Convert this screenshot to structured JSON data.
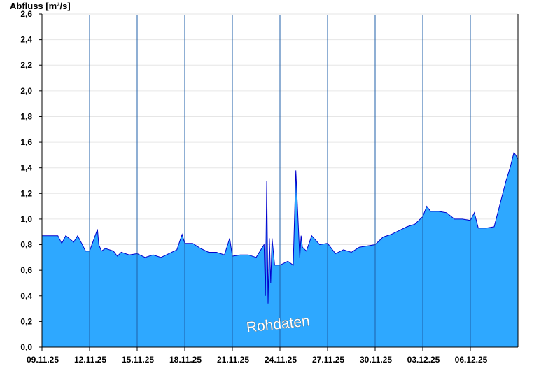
{
  "chart_data": {
    "type": "area",
    "ylabel": "Abfluss [m³/s]",
    "ylim": [
      0,
      2.6
    ],
    "yticks": [
      "0,0",
      "0,2",
      "0,4",
      "0,6",
      "0,8",
      "1,0",
      "1,2",
      "1,4",
      "1,6",
      "1,8",
      "2,0",
      "2,2",
      "2,4",
      "2,6"
    ],
    "xlim": [
      "2025-11-09",
      "2025-12-09"
    ],
    "xticks": [
      {
        "date": "2025-11-09",
        "label": "09.11.25"
      },
      {
        "date": "2025-11-12",
        "label": "12.11.25"
      },
      {
        "date": "2025-11-15",
        "label": "15.11.25"
      },
      {
        "date": "2025-11-18",
        "label": "18.11.25"
      },
      {
        "date": "2025-11-21",
        "label": "21.11.25"
      },
      {
        "date": "2025-11-24",
        "label": "24.11.25"
      },
      {
        "date": "2025-11-27",
        "label": "27.11.25"
      },
      {
        "date": "2025-11-30",
        "label": "30.11.25"
      },
      {
        "date": "2025-12-03",
        "label": "03.12.25"
      },
      {
        "date": "2025-12-06",
        "label": "06.12.25"
      }
    ],
    "grid": true,
    "fill_color": "#2ea8ff",
    "line_color": "#0000cc",
    "watermark": "Rohdaten",
    "series": [
      {
        "x": [
          "2025-11-09 00:00",
          "2025-11-10 00:00",
          "2025-11-10 06:00",
          "2025-11-10 12:00",
          "2025-11-11 00:00",
          "2025-11-11 06:00",
          "2025-11-11 12:00",
          "2025-11-11 18:00",
          "2025-11-12 00:00",
          "2025-11-12 12:00",
          "2025-11-12 14:00",
          "2025-11-12 18:00",
          "2025-11-13 00:00",
          "2025-11-13 12:00",
          "2025-11-13 18:00",
          "2025-11-14 00:00",
          "2025-11-14 12:00",
          "2025-11-15 00:00",
          "2025-11-15 12:00",
          "2025-11-16 00:00",
          "2025-11-16 12:00",
          "2025-11-17 00:00",
          "2025-11-17 12:00",
          "2025-11-17 20:00",
          "2025-11-18 00:00",
          "2025-11-18 12:00",
          "2025-11-19 00:00",
          "2025-11-19 12:00",
          "2025-11-20 00:00",
          "2025-11-20 12:00",
          "2025-11-20 20:00",
          "2025-11-21 00:00",
          "2025-11-21 12:00",
          "2025-11-22 00:00",
          "2025-11-22 12:00",
          "2025-11-23 00:00",
          "2025-11-23 02:00",
          "2025-11-23 04:00",
          "2025-11-23 06:00",
          "2025-11-23 08:00",
          "2025-11-23 10:00",
          "2025-11-23 12:00",
          "2025-11-23 16:00",
          "2025-11-23 20:00",
          "2025-11-24 00:00",
          "2025-11-24 12:00",
          "2025-11-24 20:00",
          "2025-11-25 00:00",
          "2025-11-25 06:00",
          "2025-11-25 08:00",
          "2025-11-25 10:00",
          "2025-11-25 16:00",
          "2025-11-26 00:00",
          "2025-11-26 12:00",
          "2025-11-27 00:00",
          "2025-11-27 12:00",
          "2025-11-28 00:00",
          "2025-11-28 12:00",
          "2025-11-29 00:00",
          "2025-11-29 12:00",
          "2025-11-30 00:00",
          "2025-11-30 12:00",
          "2025-12-01 00:00",
          "2025-12-01 12:00",
          "2025-12-02 00:00",
          "2025-12-02 12:00",
          "2025-12-03 00:00",
          "2025-12-03 06:00",
          "2025-12-03 12:00",
          "2025-12-04 00:00",
          "2025-12-04 12:00",
          "2025-12-05 00:00",
          "2025-12-05 12:00",
          "2025-12-06 00:00",
          "2025-12-06 06:00",
          "2025-12-06 12:00",
          "2025-12-07 00:00",
          "2025-12-07 12:00",
          "2025-12-08 00:00",
          "2025-12-08 06:00",
          "2025-12-08 12:00",
          "2025-12-08 18:00",
          "2025-12-09 00:00"
        ],
        "values": [
          0.87,
          0.87,
          0.81,
          0.87,
          0.82,
          0.87,
          0.81,
          0.75,
          0.75,
          0.92,
          0.8,
          0.75,
          0.77,
          0.75,
          0.71,
          0.74,
          0.72,
          0.73,
          0.7,
          0.72,
          0.7,
          0.73,
          0.76,
          0.88,
          0.81,
          0.81,
          0.77,
          0.74,
          0.74,
          0.72,
          0.85,
          0.71,
          0.72,
          0.72,
          0.7,
          0.8,
          0.4,
          1.3,
          0.34,
          0.85,
          0.5,
          0.85,
          0.64,
          0.64,
          0.64,
          0.67,
          0.64,
          1.38,
          0.7,
          0.87,
          0.78,
          0.75,
          0.87,
          0.8,
          0.81,
          0.73,
          0.76,
          0.74,
          0.78,
          0.79,
          0.8,
          0.86,
          0.88,
          0.91,
          0.94,
          0.96,
          1.02,
          1.1,
          1.06,
          1.06,
          1.05,
          1.0,
          1.0,
          0.99,
          1.05,
          0.93,
          0.93,
          0.94,
          1.18,
          1.3,
          1.4,
          1.52,
          1.47
        ]
      }
    ]
  }
}
